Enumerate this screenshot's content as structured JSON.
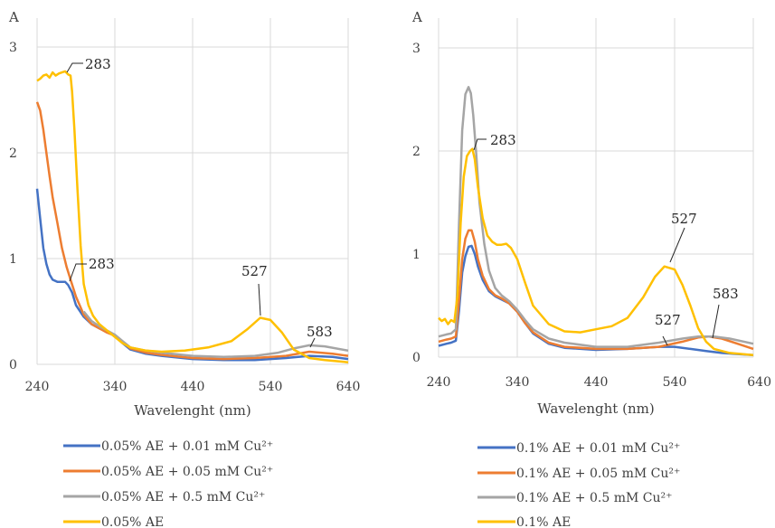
{
  "chart_data": [
    {
      "type": "line",
      "title": "",
      "ylabel": "A",
      "xlabel": "Wavelenght (nm)",
      "xlim": [
        240,
        640
      ],
      "ylim": [
        0,
        3
      ],
      "xticks": [
        "240",
        "340",
        "440",
        "540",
        "640"
      ],
      "yticks": [
        "0",
        "1",
        "2",
        "3"
      ],
      "grid": true,
      "legend_position": "bottom",
      "series": [
        {
          "name": "0.05% AE + 0.01 mM Cu²⁺",
          "color": "#4472c4",
          "points": [
            [
              240,
              1.66
            ],
            [
              244,
              1.38
            ],
            [
              248,
              1.1
            ],
            [
              252,
              0.95
            ],
            [
              256,
              0.85
            ],
            [
              260,
              0.8
            ],
            [
              266,
              0.78
            ],
            [
              272,
              0.78
            ],
            [
              276,
              0.78
            ],
            [
              280,
              0.75
            ],
            [
              285,
              0.68
            ],
            [
              290,
              0.56
            ],
            [
              300,
              0.45
            ],
            [
              310,
              0.38
            ],
            [
              320,
              0.34
            ],
            [
              330,
              0.31
            ],
            [
              340,
              0.27
            ],
            [
              350,
              0.2
            ],
            [
              360,
              0.14
            ],
            [
              380,
              0.1
            ],
            [
              400,
              0.08
            ],
            [
              440,
              0.05
            ],
            [
              480,
              0.04
            ],
            [
              520,
              0.04
            ],
            [
              560,
              0.06
            ],
            [
              590,
              0.08
            ],
            [
              620,
              0.07
            ],
            [
              640,
              0.05
            ]
          ]
        },
        {
          "name": "0.05% AE + 0.05 mM Cu²⁺",
          "color": "#ed7d31",
          "points": [
            [
              240,
              2.48
            ],
            [
              244,
              2.4
            ],
            [
              248,
              2.22
            ],
            [
              252,
              2.0
            ],
            [
              256,
              1.78
            ],
            [
              260,
              1.58
            ],
            [
              266,
              1.34
            ],
            [
              272,
              1.1
            ],
            [
              278,
              0.92
            ],
            [
              284,
              0.78
            ],
            [
              290,
              0.64
            ],
            [
              300,
              0.47
            ],
            [
              310,
              0.38
            ],
            [
              320,
              0.34
            ],
            [
              330,
              0.3
            ],
            [
              340,
              0.27
            ],
            [
              350,
              0.21
            ],
            [
              360,
              0.15
            ],
            [
              380,
              0.11
            ],
            [
              400,
              0.09
            ],
            [
              440,
              0.06
            ],
            [
              480,
              0.05
            ],
            [
              520,
              0.06
            ],
            [
              560,
              0.08
            ],
            [
              590,
              0.12
            ],
            [
              620,
              0.1
            ],
            [
              640,
              0.08
            ]
          ]
        },
        {
          "name": "0.05% AE + 0.5 mM Cu²⁺",
          "color": "#a5a5a5",
          "points": [
            [
              300,
              0.5
            ],
            [
              310,
              0.41
            ],
            [
              320,
              0.36
            ],
            [
              330,
              0.32
            ],
            [
              340,
              0.28
            ],
            [
              350,
              0.22
            ],
            [
              360,
              0.16
            ],
            [
              380,
              0.13
            ],
            [
              400,
              0.11
            ],
            [
              440,
              0.08
            ],
            [
              480,
              0.07
            ],
            [
              520,
              0.08
            ],
            [
              550,
              0.11
            ],
            [
              570,
              0.15
            ],
            [
              590,
              0.18
            ],
            [
              610,
              0.17
            ],
            [
              640,
              0.13
            ]
          ]
        },
        {
          "name": "0.05% AE",
          "color": "#ffc000",
          "points": [
            [
              240,
              2.68
            ],
            [
              244,
              2.7
            ],
            [
              248,
              2.73
            ],
            [
              252,
              2.74
            ],
            [
              256,
              2.71
            ],
            [
              260,
              2.76
            ],
            [
              264,
              2.73
            ],
            [
              268,
              2.75
            ],
            [
              272,
              2.76
            ],
            [
              276,
              2.77
            ],
            [
              280,
              2.74
            ],
            [
              283,
              2.73
            ],
            [
              285,
              2.58
            ],
            [
              288,
              2.22
            ],
            [
              292,
              1.65
            ],
            [
              296,
              1.12
            ],
            [
              300,
              0.76
            ],
            [
              306,
              0.56
            ],
            [
              312,
              0.46
            ],
            [
              320,
              0.38
            ],
            [
              330,
              0.32
            ],
            [
              340,
              0.26
            ],
            [
              350,
              0.2
            ],
            [
              360,
              0.16
            ],
            [
              380,
              0.13
            ],
            [
              400,
              0.12
            ],
            [
              430,
              0.13
            ],
            [
              460,
              0.16
            ],
            [
              490,
              0.22
            ],
            [
              510,
              0.33
            ],
            [
              527,
              0.44
            ],
            [
              540,
              0.42
            ],
            [
              555,
              0.3
            ],
            [
              570,
              0.14
            ],
            [
              590,
              0.06
            ],
            [
              610,
              0.04
            ],
            [
              640,
              0.02
            ]
          ]
        }
      ],
      "annotations": [
        {
          "label": "283",
          "x": 283,
          "y": 2.73
        },
        {
          "label": "283",
          "x": 283,
          "y": 0.78
        },
        {
          "label": "527",
          "x": 527,
          "y": 0.44
        },
        {
          "label": "583",
          "x": 583,
          "y": 0.17
        }
      ]
    },
    {
      "type": "line",
      "title": "",
      "ylabel": "A",
      "xlabel": "Wavelenght (nm)",
      "xlim": [
        240,
        640
      ],
      "ylim": [
        0,
        3
      ],
      "xticks": [
        "240",
        "340",
        "440",
        "540",
        "640"
      ],
      "yticks": [
        "0",
        "1",
        "2",
        "3"
      ],
      "grid": true,
      "legend_position": "bottom",
      "series": [
        {
          "name": "0.1% AE + 0.01 mM Cu²⁺",
          "color": "#4472c4",
          "points": [
            [
              240,
              0.11
            ],
            [
              250,
              0.13
            ],
            [
              256,
              0.14
            ],
            [
              262,
              0.16
            ],
            [
              266,
              0.45
            ],
            [
              270,
              0.82
            ],
            [
              274,
              0.98
            ],
            [
              278,
              1.07
            ],
            [
              282,
              1.08
            ],
            [
              286,
              1.0
            ],
            [
              290,
              0.88
            ],
            [
              296,
              0.75
            ],
            [
              304,
              0.64
            ],
            [
              312,
              0.59
            ],
            [
              320,
              0.56
            ],
            [
              330,
              0.52
            ],
            [
              340,
              0.44
            ],
            [
              350,
              0.33
            ],
            [
              360,
              0.23
            ],
            [
              380,
              0.13
            ],
            [
              400,
              0.09
            ],
            [
              440,
              0.07
            ],
            [
              480,
              0.08
            ],
            [
              520,
              0.1
            ],
            [
              540,
              0.1
            ],
            [
              560,
              0.08
            ],
            [
              580,
              0.06
            ],
            [
              600,
              0.04
            ],
            [
              620,
              0.03
            ],
            [
              640,
              0.02
            ]
          ]
        },
        {
          "name": "0.1% AE + 0.05 mM Cu²⁺",
          "color": "#ed7d31",
          "points": [
            [
              240,
              0.15
            ],
            [
              250,
              0.17
            ],
            [
              256,
              0.18
            ],
            [
              262,
              0.2
            ],
            [
              266,
              0.55
            ],
            [
              270,
              0.95
            ],
            [
              274,
              1.15
            ],
            [
              278,
              1.23
            ],
            [
              282,
              1.23
            ],
            [
              286,
              1.12
            ],
            [
              290,
              0.95
            ],
            [
              296,
              0.79
            ],
            [
              304,
              0.66
            ],
            [
              312,
              0.6
            ],
            [
              320,
              0.57
            ],
            [
              330,
              0.52
            ],
            [
              340,
              0.44
            ],
            [
              350,
              0.33
            ],
            [
              360,
              0.24
            ],
            [
              380,
              0.14
            ],
            [
              400,
              0.1
            ],
            [
              440,
              0.08
            ],
            [
              480,
              0.08
            ],
            [
              520,
              0.1
            ],
            [
              550,
              0.15
            ],
            [
              570,
              0.19
            ],
            [
              583,
              0.2
            ],
            [
              600,
              0.18
            ],
            [
              620,
              0.13
            ],
            [
              640,
              0.08
            ]
          ]
        },
        {
          "name": "0.1% AE + 0.5 mM Cu²⁺",
          "color": "#a5a5a5",
          "points": [
            [
              240,
              0.2
            ],
            [
              250,
              0.22
            ],
            [
              256,
              0.23
            ],
            [
              262,
              0.27
            ],
            [
              266,
              1.3
            ],
            [
              270,
              2.2
            ],
            [
              274,
              2.55
            ],
            [
              278,
              2.62
            ],
            [
              281,
              2.56
            ],
            [
              284,
              2.35
            ],
            [
              288,
              1.95
            ],
            [
              292,
              1.5
            ],
            [
              298,
              1.1
            ],
            [
              304,
              0.84
            ],
            [
              312,
              0.67
            ],
            [
              320,
              0.6
            ],
            [
              330,
              0.54
            ],
            [
              340,
              0.46
            ],
            [
              350,
              0.36
            ],
            [
              360,
              0.27
            ],
            [
              380,
              0.18
            ],
            [
              400,
              0.14
            ],
            [
              440,
              0.1
            ],
            [
              480,
              0.1
            ],
            [
              520,
              0.14
            ],
            [
              550,
              0.18
            ],
            [
              570,
              0.2
            ],
            [
              590,
              0.2
            ],
            [
              610,
              0.18
            ],
            [
              640,
              0.13
            ]
          ]
        },
        {
          "name": "0.1% AE",
          "color": "#ffc000",
          "points": [
            [
              240,
              0.38
            ],
            [
              244,
              0.35
            ],
            [
              248,
              0.37
            ],
            [
              252,
              0.32
            ],
            [
              256,
              0.36
            ],
            [
              260,
              0.34
            ],
            [
              264,
              0.6
            ],
            [
              268,
              1.3
            ],
            [
              272,
              1.75
            ],
            [
              276,
              1.95
            ],
            [
              280,
              2.0
            ],
            [
              283,
              2.02
            ],
            [
              286,
              1.92
            ],
            [
              290,
              1.65
            ],
            [
              296,
              1.35
            ],
            [
              302,
              1.18
            ],
            [
              308,
              1.12
            ],
            [
              314,
              1.09
            ],
            [
              320,
              1.09
            ],
            [
              326,
              1.1
            ],
            [
              332,
              1.06
            ],
            [
              340,
              0.95
            ],
            [
              350,
              0.72
            ],
            [
              360,
              0.5
            ],
            [
              380,
              0.32
            ],
            [
              400,
              0.25
            ],
            [
              420,
              0.24
            ],
            [
              440,
              0.27
            ],
            [
              460,
              0.3
            ],
            [
              480,
              0.38
            ],
            [
              500,
              0.58
            ],
            [
              515,
              0.78
            ],
            [
              527,
              0.88
            ],
            [
              540,
              0.85
            ],
            [
              550,
              0.7
            ],
            [
              560,
              0.5
            ],
            [
              570,
              0.28
            ],
            [
              580,
              0.15
            ],
            [
              590,
              0.08
            ],
            [
              610,
              0.04
            ],
            [
              640,
              0.02
            ]
          ]
        }
      ],
      "annotations": [
        {
          "label": "283",
          "x": 283,
          "y": 2.02
        },
        {
          "label": "527",
          "x": 527,
          "y": 0.88
        },
        {
          "label": "527",
          "x": 527,
          "y": 0.1
        },
        {
          "label": "583",
          "x": 583,
          "y": 0.2
        }
      ]
    }
  ]
}
